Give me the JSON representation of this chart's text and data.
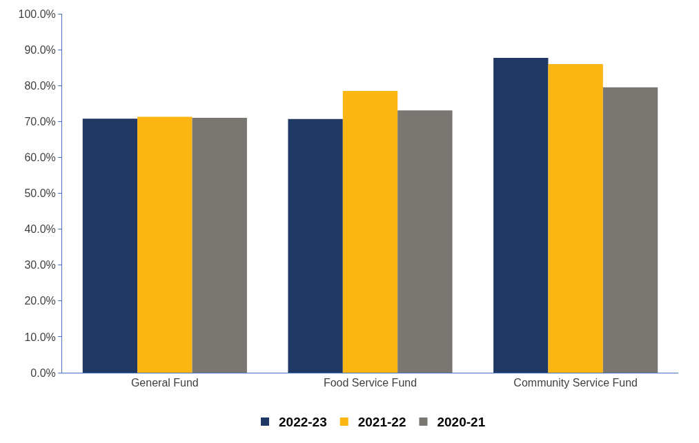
{
  "chart_data": {
    "type": "bar",
    "categories": [
      "General Fund",
      "Food Service Fund",
      "Community Service Fund"
    ],
    "series": [
      {
        "name": "2022-23",
        "color": "#203864",
        "values": [
          70.8,
          70.7,
          87.7
        ]
      },
      {
        "name": "2021-22",
        "color": "#fbb614",
        "values": [
          71.3,
          78.5,
          86.0
        ]
      },
      {
        "name": "2020-21",
        "color": "#7a7672",
        "values": [
          71.0,
          73.1,
          79.5
        ]
      }
    ],
    "ylim": [
      0,
      100
    ],
    "yticks": [
      {
        "value": 0,
        "label": "0.0%"
      },
      {
        "value": 10,
        "label": "10.0%"
      },
      {
        "value": 20,
        "label": "20.0%"
      },
      {
        "value": 30,
        "label": "30.0%"
      },
      {
        "value": 40,
        "label": "40.0%"
      },
      {
        "value": 50,
        "label": "50.0%"
      },
      {
        "value": 60,
        "label": "60.0%"
      },
      {
        "value": 70,
        "label": "70.0%"
      },
      {
        "value": 80,
        "label": "80.0%"
      },
      {
        "value": 90,
        "label": "90.0%"
      },
      {
        "value": 100,
        "label": "100.0%"
      }
    ],
    "legend": "bottom"
  }
}
